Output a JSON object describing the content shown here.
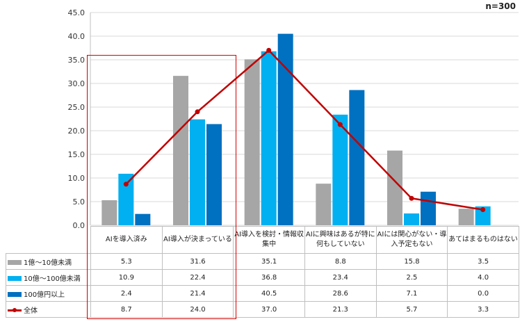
{
  "chart_data": {
    "type": "bar+line",
    "note": "n=300",
    "categories": [
      "AIを導入済み",
      "AI導入が決まっている",
      "AI導入を検討・情報収集中",
      "AIに興味はあるが特に何もしていない",
      "AIには関心がない・導入予定もない",
      "あてはまるものはない"
    ],
    "ylim": [
      0,
      45
    ],
    "yticks": [
      "0.0",
      "5.0",
      "10.0",
      "15.0",
      "20.0",
      "25.0",
      "30.0",
      "35.0",
      "40.0",
      "45.0"
    ],
    "series": [
      {
        "name": "1億～10億未満",
        "kind": "bar",
        "color": "#a6a6a6",
        "values": [
          5.3,
          31.6,
          35.1,
          8.8,
          15.8,
          3.5
        ],
        "labels": [
          "5.3",
          "31.6",
          "35.1",
          "8.8",
          "15.8",
          "3.5"
        ]
      },
      {
        "name": "10億～100億未満",
        "kind": "bar",
        "color": "#00b0f0",
        "values": [
          10.9,
          22.4,
          36.8,
          23.4,
          2.5,
          4.0
        ],
        "labels": [
          "10.9",
          "22.4",
          "36.8",
          "23.4",
          "2.5",
          "4.0"
        ]
      },
      {
        "name": "100億円以上",
        "kind": "bar",
        "color": "#0070c0",
        "values": [
          2.4,
          21.4,
          40.5,
          28.6,
          7.1,
          0.0
        ],
        "labels": [
          "2.4",
          "21.4",
          "40.5",
          "28.6",
          "7.1",
          "0.0"
        ]
      },
      {
        "name": "全体",
        "kind": "line",
        "color": "#c00000",
        "values": [
          8.7,
          24.0,
          37.0,
          21.3,
          5.7,
          3.3
        ],
        "labels": [
          "8.7",
          "24.0",
          "37.0",
          "21.3",
          "5.7",
          "3.3"
        ]
      }
    ]
  }
}
